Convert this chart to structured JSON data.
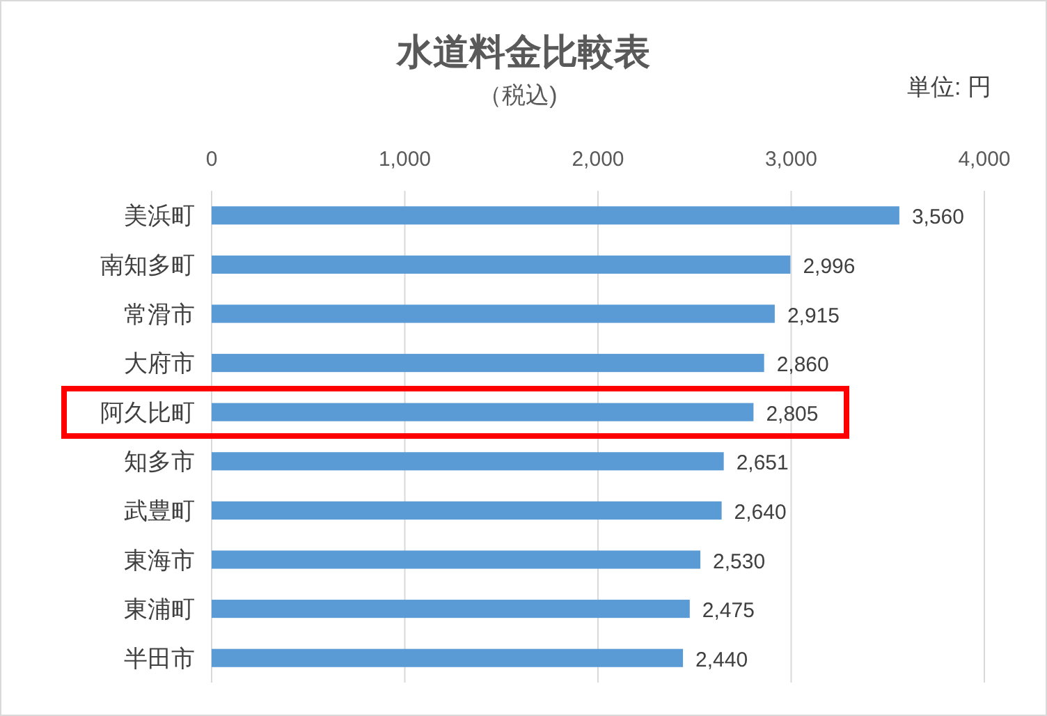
{
  "chart_data": {
    "type": "bar",
    "orientation": "horizontal",
    "title": "水道料金比較表",
    "subtitle": "（税込)",
    "annotations": [
      "単位: 円"
    ],
    "categories": [
      "美浜町",
      "南知多町",
      "常滑市",
      "大府市",
      "阿久比町",
      "知多市",
      "武豊町",
      "東海市",
      "東浦町",
      "半田市"
    ],
    "values": [
      3560,
      2996,
      2915,
      2860,
      2805,
      2651,
      2640,
      2530,
      2475,
      2440
    ],
    "value_labels": [
      "3,560",
      "2,996",
      "2,915",
      "2,860",
      "2,805",
      "2,651",
      "2,640",
      "2,530",
      "2,475",
      "2,440"
    ],
    "color": "#5b9bd5",
    "xlim": [
      0,
      4000
    ],
    "xticks": [
      {
        "value": 0,
        "label": "0"
      },
      {
        "value": 1000,
        "label": "1,000"
      },
      {
        "value": 2000,
        "label": "2,000"
      },
      {
        "value": 3000,
        "label": "3,000"
      },
      {
        "value": 4000,
        "label": "4,000"
      }
    ],
    "grid": "x"
  }
}
